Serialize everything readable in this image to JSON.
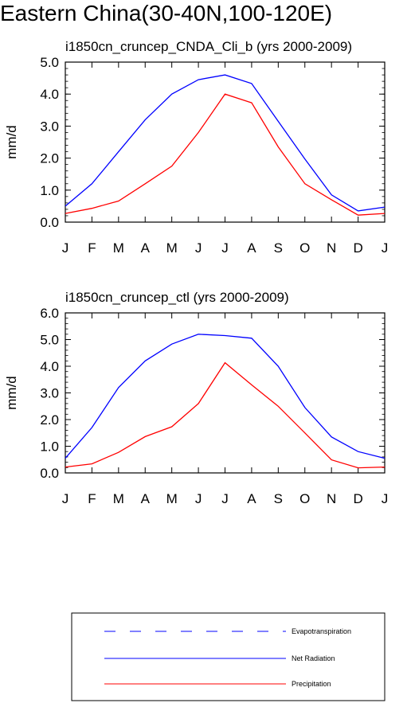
{
  "title": "Eastern China(30-40N,100-120E)",
  "chart_data": [
    {
      "type": "line",
      "title": "i1850cn_cruncep_CNDA_Cli_b (yrs 2000-2009)",
      "ylabel": "mm/d",
      "xlabel": "",
      "categories": [
        "J",
        "F",
        "M",
        "A",
        "M",
        "J",
        "J",
        "A",
        "S",
        "O",
        "N",
        "D",
        "J"
      ],
      "ylim": [
        0,
        5
      ],
      "yticks": [
        "0.0",
        "1.0",
        "2.0",
        "3.0",
        "4.0",
        "5.0"
      ],
      "series": [
        {
          "name": "Net Radiation",
          "color": "#0000ff",
          "dash": false,
          "values": [
            0.5,
            1.2,
            2.2,
            3.2,
            4.0,
            4.45,
            4.6,
            4.33,
            3.15,
            1.97,
            0.85,
            0.35,
            0.47
          ]
        },
        {
          "name": "Precipitation",
          "color": "#ff0000",
          "dash": false,
          "values": [
            0.27,
            0.43,
            0.66,
            1.2,
            1.75,
            2.8,
            4.0,
            3.73,
            2.35,
            1.2,
            0.7,
            0.22,
            0.27
          ]
        }
      ]
    },
    {
      "type": "line",
      "title": "i1850cn_cruncep_ctl (yrs 2000-2009)",
      "ylabel": "mm/d",
      "xlabel": "",
      "categories": [
        "J",
        "F",
        "M",
        "A",
        "M",
        "J",
        "J",
        "A",
        "S",
        "O",
        "N",
        "D",
        "J"
      ],
      "ylim": [
        0,
        6
      ],
      "yticks": [
        "0.0",
        "1.0",
        "2.0",
        "3.0",
        "4.0",
        "5.0",
        "6.0"
      ],
      "series": [
        {
          "name": "Net Radiation",
          "color": "#0000ff",
          "dash": false,
          "values": [
            0.55,
            1.7,
            3.2,
            4.2,
            4.83,
            5.2,
            5.15,
            5.05,
            4.0,
            2.45,
            1.35,
            0.8,
            0.55
          ]
        },
        {
          "name": "Precipitation",
          "color": "#ff0000",
          "dash": false,
          "values": [
            0.22,
            0.34,
            0.77,
            1.36,
            1.73,
            2.6,
            4.13,
            3.3,
            2.5,
            1.5,
            0.49,
            0.19,
            0.22
          ]
        }
      ]
    }
  ],
  "legend": {
    "items": [
      {
        "label": "Evapotranspiration",
        "color": "#0000ff",
        "dash": true
      },
      {
        "label": "Net Radiation",
        "color": "#0000ff",
        "dash": false
      },
      {
        "label": "Precipitation",
        "color": "#ff0000",
        "dash": false
      }
    ]
  }
}
